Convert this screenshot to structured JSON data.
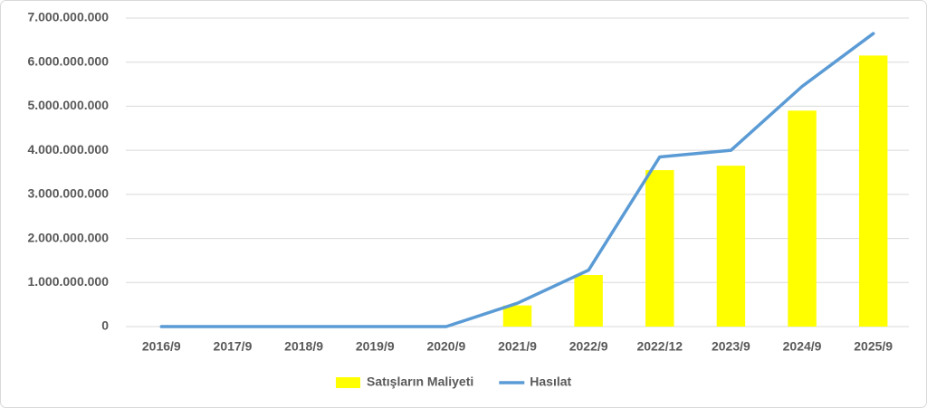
{
  "chart_data": {
    "type": "bar",
    "categories": [
      "2016/9",
      "2017/9",
      "2018/9",
      "2019/9",
      "2020/9",
      "2021/9",
      "2022/9",
      "2022/12",
      "2023/9",
      "2024/9",
      "2025/9"
    ],
    "series": [
      {
        "name": "Satışların Maliyeti",
        "type": "bar",
        "color": "#ffff00",
        "values": [
          0,
          0,
          0,
          0,
          0,
          480000000,
          1170000000,
          3550000000,
          3650000000,
          4900000000,
          6150000000
        ]
      },
      {
        "name": "Hasılat",
        "type": "line",
        "color": "#5b9bd5",
        "values": [
          0,
          0,
          0,
          0,
          0,
          530000000,
          1280000000,
          3850000000,
          4000000000,
          5450000000,
          6650000000
        ]
      }
    ],
    "ylim": [
      0,
      7000000000
    ],
    "yticks": [
      0,
      {
        "value": 1000000000,
        "label": "1.000.000.000"
      },
      {
        "value": 2000000000,
        "label": "2.000.000.000"
      },
      {
        "value": 3000000000,
        "label": "3.000.000.000"
      },
      {
        "value": 4000000000,
        "label": "4.000.000.000"
      },
      {
        "value": 5000000000,
        "label": "5.000.000.000"
      },
      {
        "value": 6000000000,
        "label": "6.000.000.000"
      },
      {
        "value": 7000000000,
        "label": "7.000.000.000"
      }
    ],
    "grid": true,
    "legend": "bottom"
  }
}
